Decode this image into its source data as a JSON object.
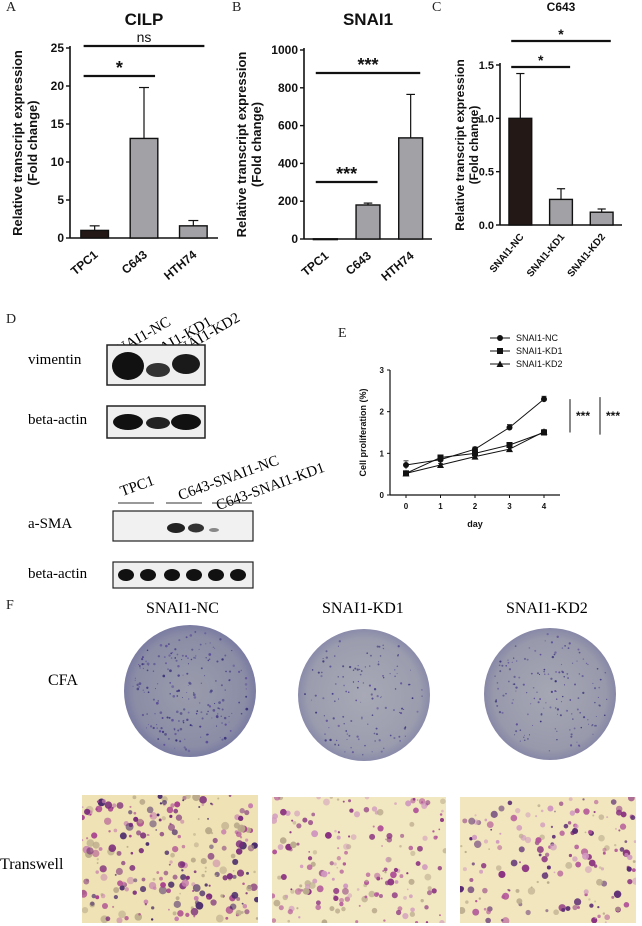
{
  "panels": {
    "A": "A",
    "B": "B",
    "C": "C",
    "D": "D",
    "E": "E",
    "F": "F"
  },
  "chart_data": [
    {
      "id": "A",
      "type": "bar",
      "title": "CILP",
      "ylabel_line1": "Relative transcript expression",
      "ylabel_line2": "(Fold change)",
      "categories": [
        "TPC1",
        "C643",
        "HTH74"
      ],
      "values": [
        1.0,
        13.1,
        1.6
      ],
      "errors": [
        0.6,
        6.7,
        0.7
      ],
      "ylim": [
        0,
        25
      ],
      "yticks": [
        "0",
        "5",
        "10",
        "15",
        "20",
        "25"
      ],
      "bar_colors": [
        "#231815",
        "#a2a2a6",
        "#a2a2a6"
      ],
      "annotations": [
        {
          "from": 0,
          "to": 1,
          "label": "*"
        },
        {
          "from": 0,
          "to": 2,
          "label": "ns"
        }
      ]
    },
    {
      "id": "B",
      "type": "bar",
      "title": "SNAI1",
      "ylabel_line1": "Relative transcript expression",
      "ylabel_line2": "(Fold change)",
      "categories": [
        "TPC1",
        "C643",
        "HTH74"
      ],
      "values": [
        1,
        180,
        535
      ],
      "errors": [
        0,
        10,
        230
      ],
      "ylim": [
        0,
        1000
      ],
      "yticks": [
        "0",
        "200",
        "400",
        "600",
        "800",
        "1000"
      ],
      "bar_colors": [
        "#231815",
        "#a2a2a6",
        "#a2a2a6"
      ],
      "annotations": [
        {
          "from": 0,
          "to": 1,
          "label": "***"
        },
        {
          "from": 0,
          "to": 2,
          "label": "***"
        }
      ]
    },
    {
      "id": "C",
      "type": "bar",
      "title": "C643",
      "ylabel_line1": "Relative transcript expression",
      "ylabel_line2": "(Fold change)",
      "categories": [
        "SNAI1-NC",
        "SNAI1-KD1",
        "SNAI1-KD2"
      ],
      "values": [
        1.0,
        0.24,
        0.12
      ],
      "errors": [
        0.42,
        0.1,
        0.03
      ],
      "ylim": [
        0,
        1.5
      ],
      "yticks": [
        "0.0",
        "0.5",
        "1.0",
        "1.5"
      ],
      "bar_colors": [
        "#231815",
        "#a2a2a6",
        "#a2a2a6"
      ],
      "annotations": [
        {
          "from": 0,
          "to": 1,
          "label": "*"
        },
        {
          "from": 0,
          "to": 2,
          "label": "*"
        }
      ]
    },
    {
      "id": "E",
      "type": "line",
      "title": "",
      "xlabel": "day",
      "ylabel": "Cell proliferation (%)",
      "x": [
        0,
        1,
        2,
        3,
        4
      ],
      "xticks": [
        "0",
        "1",
        "2",
        "3",
        "4"
      ],
      "yticks": [
        "0",
        "1",
        "2",
        "3"
      ],
      "ylim": [
        0,
        3
      ],
      "series": [
        {
          "name": "SNAI1-NC",
          "marker": "circle",
          "values": [
            0.72,
            0.85,
            1.1,
            1.62,
            2.3
          ],
          "errors": [
            0.1,
            0.05,
            0.05,
            0.07,
            0.07
          ]
        },
        {
          "name": "SNAI1-KD1",
          "marker": "square",
          "values": [
            0.52,
            0.9,
            1.0,
            1.2,
            1.5
          ],
          "errors": [
            0.05,
            0.05,
            0.04,
            0.05,
            0.05
          ]
        },
        {
          "name": "SNAI1-KD2",
          "marker": "triangle",
          "values": [
            0.52,
            0.72,
            0.92,
            1.1,
            1.52
          ],
          "errors": [
            0.04,
            0.04,
            0.04,
            0.05,
            0.05
          ]
        }
      ],
      "legend": "top-right",
      "annotations": [
        "***",
        "***"
      ]
    }
  ],
  "blot_top": {
    "lanes": [
      "SNAI1-NC",
      "SNAI1-KD1",
      "SNAI1-KD2"
    ],
    "rows": [
      "vimentin",
      "beta-actin"
    ]
  },
  "blot_bottom": {
    "groups": [
      "TPC1",
      "C643-SNAI1-NC",
      "C643-SNAI1-KD1"
    ],
    "rows": [
      "a-SMA",
      "beta-actin"
    ]
  },
  "panelF": {
    "columns": [
      "SNAI1-NC",
      "SNAI1-KD1",
      "SNAI1-KD2"
    ],
    "rows": [
      "CFA",
      "Transwell"
    ]
  }
}
